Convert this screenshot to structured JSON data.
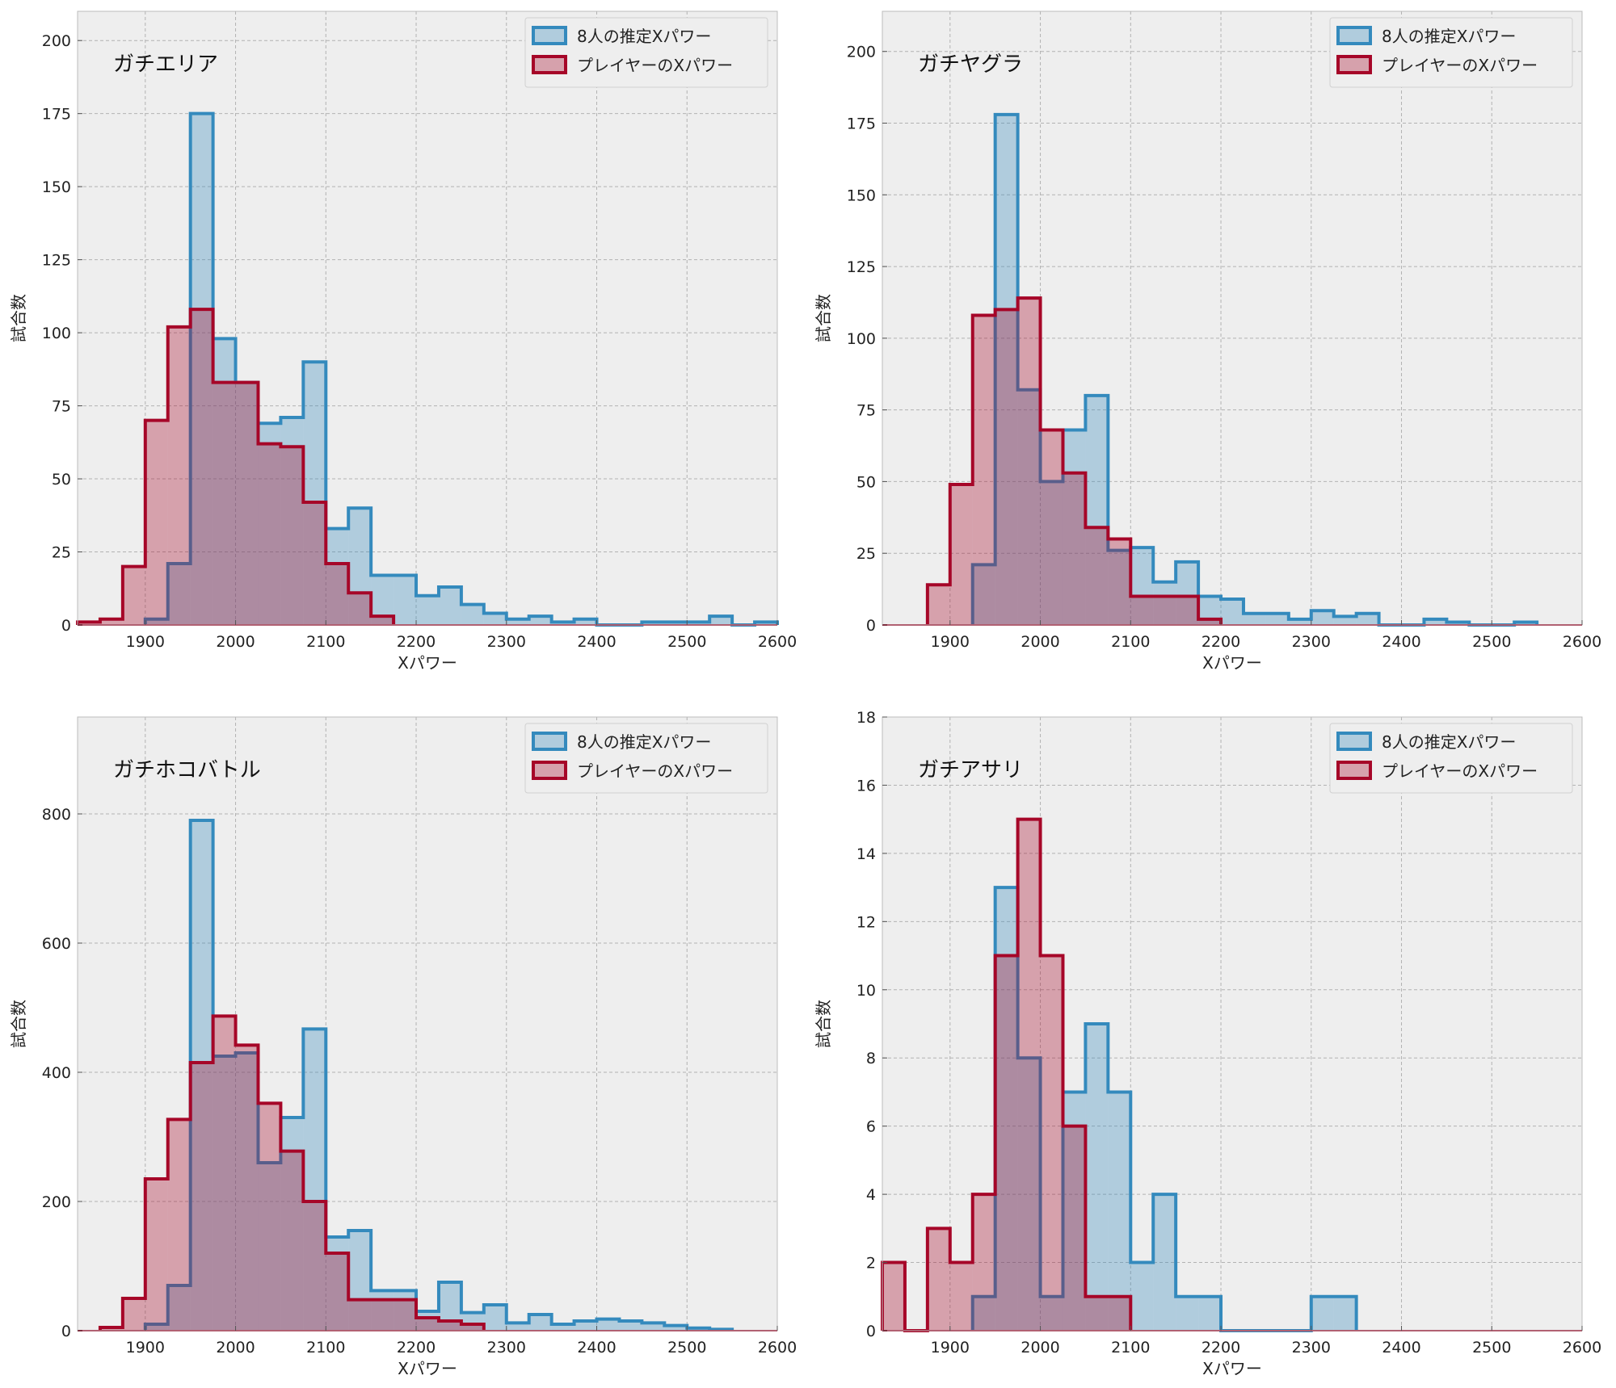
{
  "chart_data": [
    {
      "type": "bar",
      "title": "ガチエリア",
      "xlabel": "Xパワー",
      "ylabel": "試合数",
      "xlim": [
        1825,
        2600
      ],
      "ylim": [
        0,
        210
      ],
      "xticks": [
        1900,
        2000,
        2100,
        2200,
        2300,
        2400,
        2500,
        2600
      ],
      "yticks": [
        0,
        25,
        50,
        75,
        100,
        125,
        150,
        175,
        200
      ],
      "grid": true,
      "legend": "top-right",
      "bin_width": 25,
      "series": [
        {
          "name": "8人の推定Xパワー",
          "color": "#348ABD",
          "start": 1900,
          "values": [
            2,
            21,
            175,
            98,
            83,
            69,
            71,
            90,
            33,
            40,
            17,
            17,
            10,
            13,
            7,
            4,
            2,
            3,
            1,
            2,
            0,
            0,
            1,
            1,
            1,
            3,
            0,
            1
          ]
        },
        {
          "name": "プレイヤーのXパワー",
          "color": "#A60628",
          "start": 1825,
          "values": [
            1,
            2,
            20,
            70,
            102,
            108,
            83,
            83,
            62,
            61,
            42,
            21,
            11,
            3
          ]
        }
      ]
    },
    {
      "type": "bar",
      "title": "ガチヤグラ",
      "xlabel": "Xパワー",
      "ylabel": "試合数",
      "xlim": [
        1825,
        2600
      ],
      "ylim": [
        0,
        214
      ],
      "xticks": [
        1900,
        2000,
        2100,
        2200,
        2300,
        2400,
        2500,
        2600
      ],
      "yticks": [
        0,
        25,
        50,
        75,
        100,
        125,
        150,
        175,
        200
      ],
      "grid": true,
      "legend": "top-right",
      "bin_width": 25,
      "series": [
        {
          "name": "8人の推定Xパワー",
          "color": "#348ABD",
          "start": 1925,
          "values": [
            21,
            178,
            82,
            50,
            68,
            80,
            26,
            27,
            15,
            22,
            10,
            9,
            4,
            4,
            2,
            5,
            3,
            4,
            0,
            0,
            2,
            1,
            0,
            0,
            1
          ]
        },
        {
          "name": "プレイヤーのXパワー",
          "color": "#A60628",
          "start": 1875,
          "values": [
            14,
            49,
            108,
            110,
            114,
            68,
            53,
            34,
            30,
            10,
            10,
            10,
            2
          ]
        }
      ]
    },
    {
      "type": "bar",
      "title": "ガチホコバトル",
      "xlabel": "Xパワー",
      "ylabel": "試合数",
      "xlim": [
        1825,
        2600
      ],
      "ylim": [
        0,
        950
      ],
      "xticks": [
        1900,
        2000,
        2100,
        2200,
        2300,
        2400,
        2500,
        2600
      ],
      "yticks": [
        0,
        200,
        400,
        600,
        800
      ],
      "grid": true,
      "legend": "top-right",
      "bin_width": 25,
      "series": [
        {
          "name": "8人の推定Xパワー",
          "color": "#348ABD",
          "start": 1900,
          "values": [
            10,
            70,
            790,
            425,
            430,
            260,
            330,
            467,
            145,
            155,
            62,
            62,
            30,
            75,
            28,
            40,
            12,
            25,
            10,
            15,
            18,
            15,
            12,
            8,
            4,
            2
          ]
        },
        {
          "name": "プレイヤーのXパワー",
          "color": "#A60628",
          "start": 1850,
          "values": [
            5,
            50,
            235,
            327,
            415,
            487,
            442,
            352,
            278,
            200,
            120,
            48,
            48,
            48,
            20,
            15,
            10
          ]
        }
      ]
    },
    {
      "type": "bar",
      "title": "ガチアサリ",
      "xlabel": "Xパワー",
      "ylabel": "試合数",
      "xlim": [
        1825,
        2600
      ],
      "ylim": [
        0,
        18
      ],
      "xticks": [
        1900,
        2000,
        2100,
        2200,
        2300,
        2400,
        2500,
        2600
      ],
      "yticks": [
        0,
        2,
        4,
        6,
        8,
        10,
        12,
        14,
        16,
        18
      ],
      "grid": true,
      "legend": "top-right",
      "bin_width": 25,
      "series": [
        {
          "name": "8人の推定Xパワー",
          "color": "#348ABD",
          "start": 1925,
          "values": [
            1,
            13,
            8,
            1,
            7,
            9,
            7,
            2,
            4,
            1,
            1,
            0,
            0,
            0,
            0,
            1,
            1
          ]
        },
        {
          "name": "プレイヤーのXパワー",
          "color": "#A60628",
          "start": 1825,
          "values": [
            2,
            0,
            3,
            2,
            4,
            11,
            15,
            11,
            6,
            1,
            1
          ]
        }
      ]
    }
  ]
}
